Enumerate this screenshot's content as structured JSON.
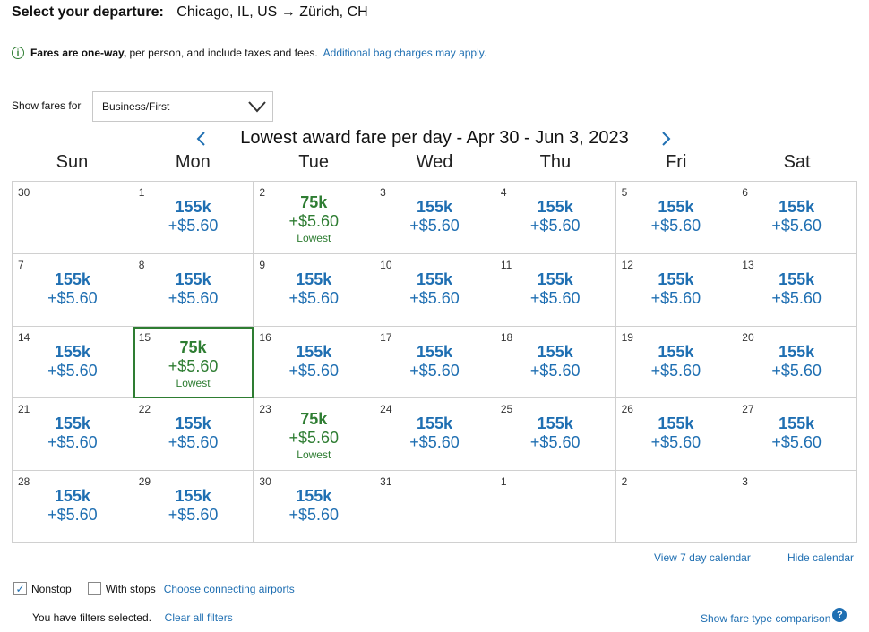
{
  "header": {
    "label": "Select your departure:",
    "route": "Chicago, IL, US → Zürich, CH"
  },
  "info": {
    "icon": "info-icon",
    "bold_text": "Fares are one-way,",
    "text": " per person, and include taxes and fees.",
    "link": "Additional bag charges may apply."
  },
  "fare_filter": {
    "label": "Show fares for",
    "selected": "Business/First"
  },
  "calendar": {
    "title": "Lowest award fare per day - Apr 30 - Jun 3, 2023",
    "weekdays": [
      "Sun",
      "Mon",
      "Tue",
      "Wed",
      "Thu",
      "Fri",
      "Sat"
    ],
    "days": [
      {
        "day": "30",
        "points": "",
        "fee": "",
        "lowest": ""
      },
      {
        "day": "1",
        "points": "155k",
        "fee": "+$5.60",
        "lowest": ""
      },
      {
        "day": "2",
        "points": "75k",
        "fee": "+$5.60",
        "lowest": "Lowest"
      },
      {
        "day": "3",
        "points": "155k",
        "fee": "+$5.60",
        "lowest": ""
      },
      {
        "day": "4",
        "points": "155k",
        "fee": "+$5.60",
        "lowest": ""
      },
      {
        "day": "5",
        "points": "155k",
        "fee": "+$5.60",
        "lowest": ""
      },
      {
        "day": "6",
        "points": "155k",
        "fee": "+$5.60",
        "lowest": ""
      },
      {
        "day": "7",
        "points": "155k",
        "fee": "+$5.60",
        "lowest": ""
      },
      {
        "day": "8",
        "points": "155k",
        "fee": "+$5.60",
        "lowest": ""
      },
      {
        "day": "9",
        "points": "155k",
        "fee": "+$5.60",
        "lowest": ""
      },
      {
        "day": "10",
        "points": "155k",
        "fee": "+$5.60",
        "lowest": ""
      },
      {
        "day": "11",
        "points": "155k",
        "fee": "+$5.60",
        "lowest": ""
      },
      {
        "day": "12",
        "points": "155k",
        "fee": "+$5.60",
        "lowest": ""
      },
      {
        "day": "13",
        "points": "155k",
        "fee": "+$5.60",
        "lowest": ""
      },
      {
        "day": "14",
        "points": "155k",
        "fee": "+$5.60",
        "lowest": ""
      },
      {
        "day": "15",
        "points": "75k",
        "fee": "+$5.60",
        "lowest": "Lowest",
        "selected": true
      },
      {
        "day": "16",
        "points": "155k",
        "fee": "+$5.60",
        "lowest": ""
      },
      {
        "day": "17",
        "points": "155k",
        "fee": "+$5.60",
        "lowest": ""
      },
      {
        "day": "18",
        "points": "155k",
        "fee": "+$5.60",
        "lowest": ""
      },
      {
        "day": "19",
        "points": "155k",
        "fee": "+$5.60",
        "lowest": ""
      },
      {
        "day": "20",
        "points": "155k",
        "fee": "+$5.60",
        "lowest": ""
      },
      {
        "day": "21",
        "points": "155k",
        "fee": "+$5.60",
        "lowest": ""
      },
      {
        "day": "22",
        "points": "155k",
        "fee": "+$5.60",
        "lowest": ""
      },
      {
        "day": "23",
        "points": "75k",
        "fee": "+$5.60",
        "lowest": "Lowest"
      },
      {
        "day": "24",
        "points": "155k",
        "fee": "+$5.60",
        "lowest": ""
      },
      {
        "day": "25",
        "points": "155k",
        "fee": "+$5.60",
        "lowest": ""
      },
      {
        "day": "26",
        "points": "155k",
        "fee": "+$5.60",
        "lowest": ""
      },
      {
        "day": "27",
        "points": "155k",
        "fee": "+$5.60",
        "lowest": ""
      },
      {
        "day": "28",
        "points": "155k",
        "fee": "+$5.60",
        "lowest": ""
      },
      {
        "day": "29",
        "points": "155k",
        "fee": "+$5.60",
        "lowest": ""
      },
      {
        "day": "30",
        "points": "155k",
        "fee": "+$5.60",
        "lowest": ""
      },
      {
        "day": "31",
        "points": "",
        "fee": "",
        "lowest": ""
      },
      {
        "day": "1",
        "points": "",
        "fee": "",
        "lowest": ""
      },
      {
        "day": "2",
        "points": "",
        "fee": "",
        "lowest": ""
      },
      {
        "day": "3",
        "points": "",
        "fee": "",
        "lowest": ""
      }
    ],
    "view_7_day": "View 7 day calendar",
    "hide": "Hide calendar"
  },
  "filters": {
    "nonstop": {
      "label": "Nonstop",
      "checked": true
    },
    "with_stops": {
      "label": "With stops",
      "checked": false
    },
    "connecting_link": "Choose connecting airports",
    "note": "You have filters selected.",
    "clear_link": "Clear all filters"
  },
  "fare_type_link": "Show fare type comparison",
  "colors": {
    "link": "#1f6fb2",
    "lowest": "#2e7d32",
    "border": "#d0d0d0"
  }
}
